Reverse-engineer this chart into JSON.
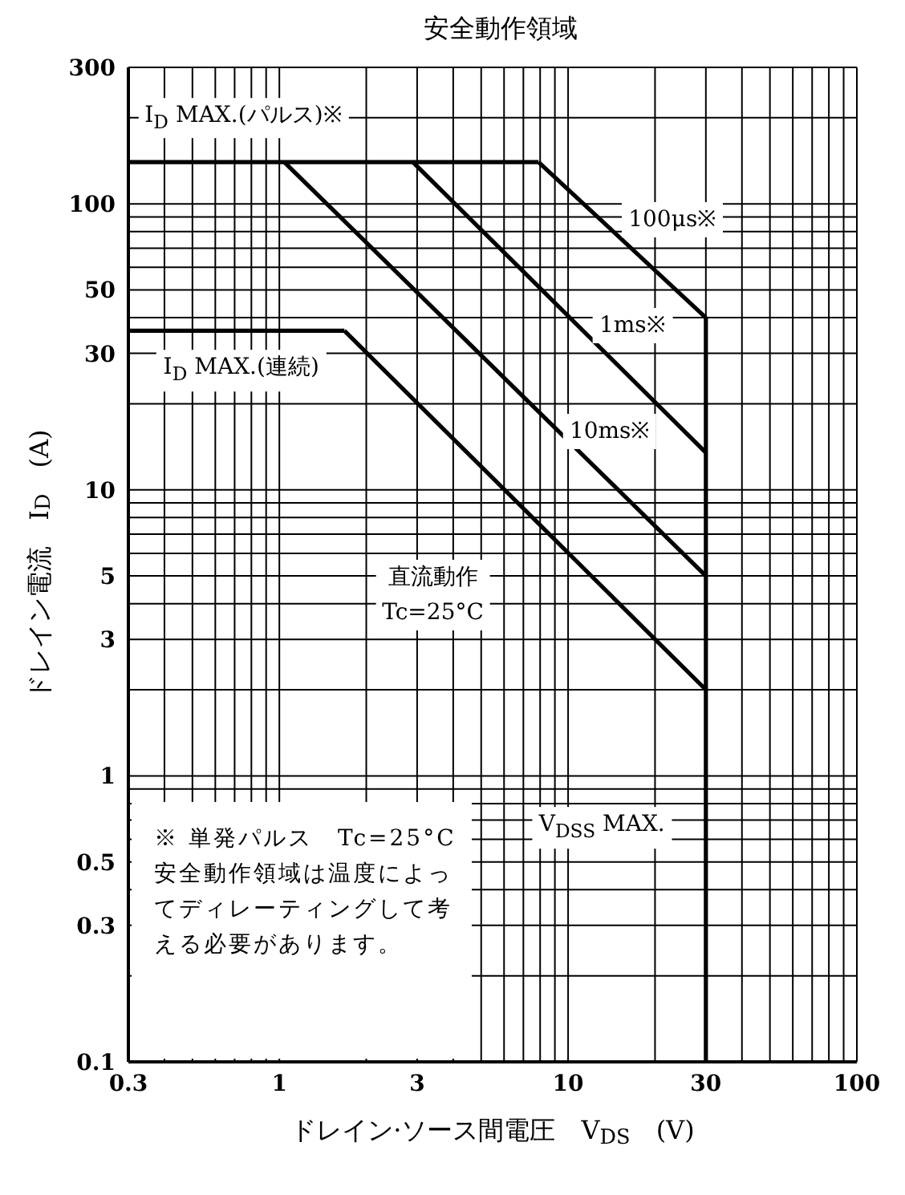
{
  "chart_data": {
    "type": "line",
    "title": "安全動作領域",
    "xlabel": "ドレイン·ソース間電圧　V$_{DS}$　(V)",
    "ylabel": "ドレイン電流　I$_{D}$　(A)",
    "log": "xy",
    "grid": true,
    "marker": "none",
    "line_style": "solid",
    "xlim": [
      0.3,
      100
    ],
    "xticks": [
      0.3,
      {
        "value": 0.4,
        "label": null
      },
      {
        "value": 0.5,
        "label": null
      },
      {
        "value": 0.6,
        "label": null
      },
      {
        "value": 0.7,
        "label": null
      },
      {
        "value": 0.8,
        "label": null
      },
      {
        "value": 0.9,
        "label": null
      },
      1,
      {
        "value": 2,
        "label": null
      },
      3,
      {
        "value": 4,
        "label": null
      },
      {
        "value": 5,
        "label": null
      },
      {
        "value": 6,
        "label": null
      },
      {
        "value": 7,
        "label": null
      },
      {
        "value": 8,
        "label": null
      },
      {
        "value": 9,
        "label": null
      },
      10,
      {
        "value": 20,
        "label": null
      },
      30,
      {
        "value": 40,
        "label": null
      },
      {
        "value": 50,
        "label": null
      },
      {
        "value": 60,
        "label": null
      },
      {
        "value": 70,
        "label": null
      },
      {
        "value": 80,
        "label": null
      },
      {
        "value": 90,
        "label": null
      },
      100
    ],
    "ylim": [
      0.1,
      300
    ],
    "yticks": [
      0.1,
      {
        "value": 0.2,
        "label": null
      },
      0.3,
      {
        "value": 0.4,
        "label": null
      },
      0.5,
      {
        "value": 0.6,
        "label": null
      },
      {
        "value": 0.7,
        "label": null
      },
      {
        "value": 0.8,
        "label": null
      },
      {
        "value": 0.9,
        "label": null
      },
      1,
      {
        "value": 2,
        "label": null
      },
      3,
      {
        "value": 4,
        "label": null
      },
      5,
      {
        "value": 6,
        "label": null
      },
      {
        "value": 7,
        "label": null
      },
      {
        "value": 8,
        "label": null
      },
      {
        "value": 9,
        "label": null
      },
      10,
      {
        "value": 20,
        "label": null
      },
      30,
      {
        "value": 40,
        "label": null
      },
      50,
      {
        "value": 60,
        "label": null
      },
      {
        "value": 70,
        "label": null
      },
      {
        "value": 80,
        "label": null
      },
      {
        "value": 90,
        "label": null
      },
      100,
      {
        "value": 200,
        "label": null
      },
      300
    ],
    "series": [
      {
        "color": "#000000",
        "x": [
          0.3,
          7.9
        ],
        "values": [
          140,
          140
        ]
      },
      {
        "color": "#000000",
        "x": [
          7.9,
          30
        ],
        "values": [
          140,
          40
        ]
      },
      {
        "color": "#000000",
        "x": [
          2.9,
          30
        ],
        "values": [
          140,
          13.5
        ]
      },
      {
        "color": "#000000",
        "x": [
          1.04,
          30
        ],
        "values": [
          140,
          5
        ]
      },
      {
        "color": "#000000",
        "x": [
          0.3,
          1.68
        ],
        "values": [
          36,
          36
        ]
      },
      {
        "color": "#000000",
        "x": [
          1.68,
          30
        ],
        "values": [
          36,
          2
        ]
      },
      {
        "color": "#000000",
        "x": [
          30,
          30
        ],
        "values": [
          40,
          0.1
        ]
      }
    ],
    "annotations": [
      "I$_{D}$ MAX.(パルス)※",
      "100μs※",
      "1ms※",
      "10ms※",
      "I$_{D}$ MAX.(連続)",
      "直流動作\nTc=25°C",
      "V$_{DSS}$ MAX.",
      "※ 単発パルス　Tc=25°C",
      "安全動作領域は温度によってディレーティングして考える必要があります。"
    ]
  }
}
